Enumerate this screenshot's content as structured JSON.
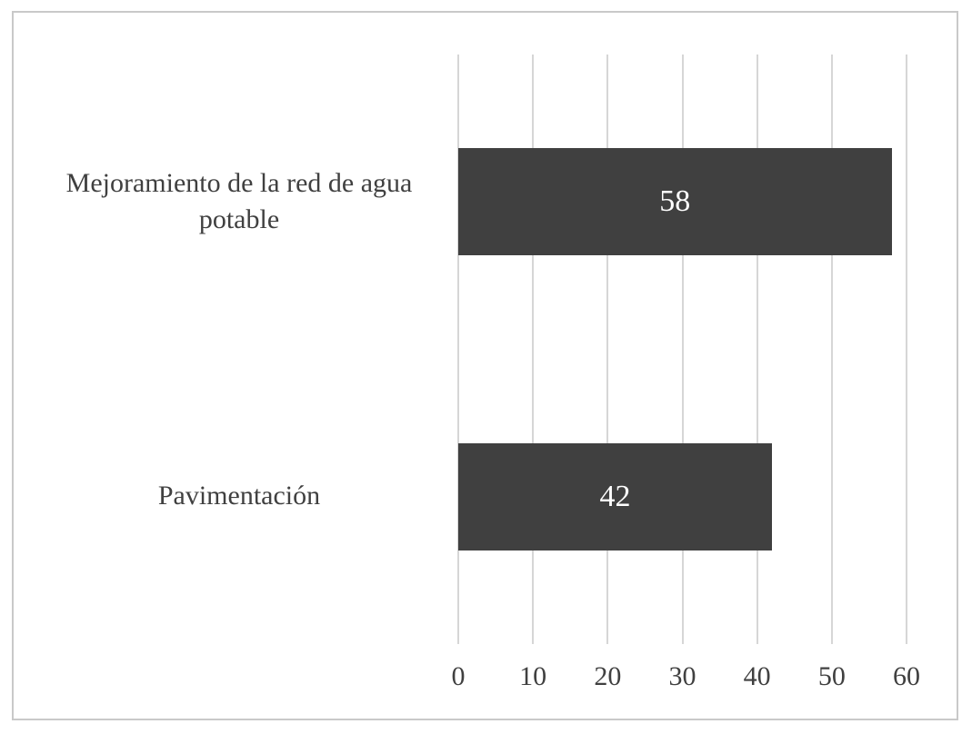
{
  "chart_data": {
    "type": "bar",
    "orientation": "horizontal",
    "title": "",
    "xlabel": "",
    "ylabel": "",
    "categories": [
      "Mejoramiento de la red de agua potable",
      "Pavimentación"
    ],
    "values": [
      58,
      42
    ],
    "data_labels": [
      "58",
      "42"
    ],
    "xlim": [
      0,
      60
    ],
    "xticks": [
      0,
      10,
      20,
      30,
      40,
      50,
      60
    ],
    "grid": true,
    "legend": false,
    "colors": {
      "bar_fill": "#404040",
      "data_label_text": "#ffffff",
      "gridline": "#d6d6d6",
      "axis_text": "#404040",
      "figure_border": "#c9c9c9",
      "background": "#ffffff"
    }
  }
}
